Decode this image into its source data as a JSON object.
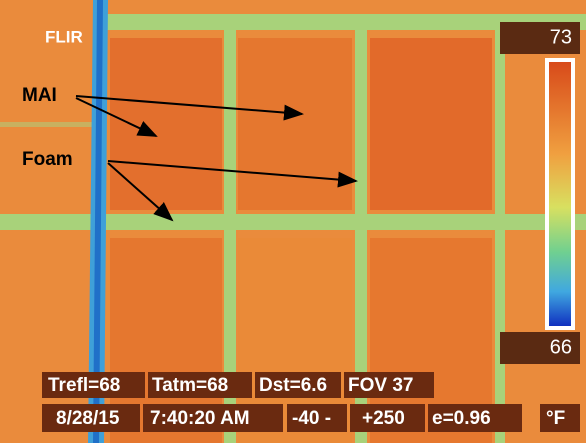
{
  "header": {
    "brand": "FLIR"
  },
  "annotations": [
    {
      "label": "MAI"
    },
    {
      "label": "Foam"
    }
  ],
  "scale": {
    "max": "73",
    "min": "66"
  },
  "info": {
    "row1": [
      "Trefl=68",
      "Tatm=68",
      "Dst=6.6",
      "FOV 37"
    ],
    "row2": [
      "8/28/15",
      "7:40:20 AM",
      "-40 -",
      "+250",
      "e=0.96"
    ],
    "unit": "°F"
  }
}
